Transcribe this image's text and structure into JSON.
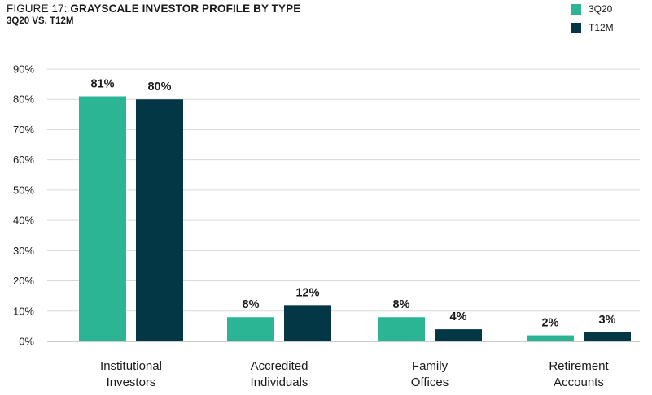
{
  "header": {
    "title_prefix": "FIGURE 17: ",
    "title_main": "GRAYSCALE INVESTOR PROFILE BY TYPE",
    "subtitle": "3Q20 VS. T12M"
  },
  "legend": [
    {
      "name": "3Q20",
      "color": "#2bb594"
    },
    {
      "name": "T12M",
      "color": "#043746"
    }
  ],
  "chart_data": {
    "type": "bar",
    "title": "GRAYSCALE INVESTOR PROFILE BY TYPE",
    "subtitle": "3Q20 VS. T12M",
    "categories": [
      [
        "Institutional",
        "Investors"
      ],
      [
        "Accredited",
        "Individuals"
      ],
      [
        "Family",
        "Offices"
      ],
      [
        "Retirement",
        "Accounts"
      ]
    ],
    "series": [
      {
        "name": "3Q20",
        "values": [
          81,
          8,
          8,
          2
        ],
        "labels": [
          "81%",
          "8%",
          "8%",
          "2%"
        ],
        "color": "#2bb594"
      },
      {
        "name": "T12M",
        "values": [
          80,
          12,
          4,
          3
        ],
        "labels": [
          "80%",
          "12%",
          "4%",
          "3%"
        ],
        "color": "#043746"
      }
    ],
    "ylim": [
      0,
      90
    ],
    "yticks": [
      "0%",
      "10%",
      "20%",
      "30%",
      "40%",
      "50%",
      "60%",
      "70%",
      "80%",
      "90%"
    ],
    "grid": true,
    "legend_position": "top-right"
  }
}
